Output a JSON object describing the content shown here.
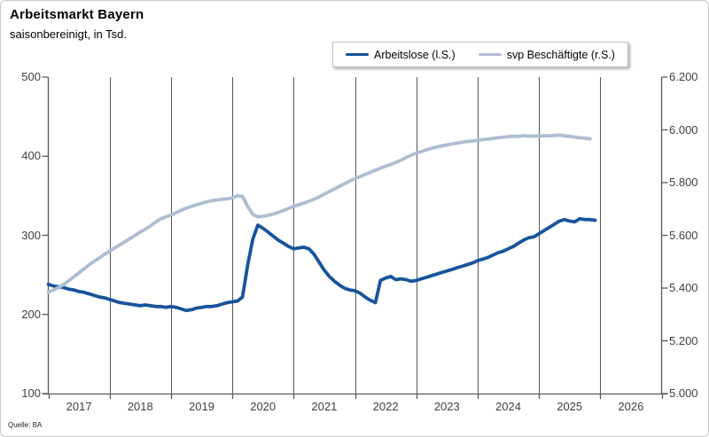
{
  "header": {
    "title": "Arbeitsmarkt Bayern",
    "subtitle": "saisonbereinigt, in Tsd."
  },
  "source_label": "Quelle: BA",
  "colors": {
    "arbeitslose_line": "#17549b",
    "beschaeftigte_line": "#aebdd2",
    "gridline": "#595959",
    "axis": "#595959",
    "tick_text": "#3f3f3f"
  },
  "legend": [
    {
      "label": "Arbeitslose (l.S.)",
      "color": "#17549b"
    },
    {
      "label": "svp Beschäftigte (r.S.)",
      "color": "#aebdd2"
    }
  ],
  "chart_data": {
    "type": "line",
    "title": "Arbeitsmarkt Bayern",
    "subtitle": "saisonbereinigt, in Tsd.",
    "grid": "vertical-year-lines",
    "legend_position": "top-right",
    "x_unit": "month",
    "x_start": "2017-01",
    "x_tick_labels": [
      "2017",
      "2018",
      "2019",
      "2020",
      "2021",
      "2022",
      "2023",
      "2024",
      "2025",
      "2026"
    ],
    "left_axis": {
      "min": 100,
      "max": 500,
      "tick_labels_top_to_bottom": [
        "500",
        "400",
        "300",
        "200",
        "100"
      ]
    },
    "right_axis": {
      "min": 5000,
      "max": 6200,
      "tick_labels_top_to_bottom": [
        "6.200",
        "6.000",
        "5.800",
        "5.600",
        "5.400",
        "5.200",
        "5.000"
      ]
    },
    "series": [
      {
        "name": "Arbeitslose (l.S.)",
        "axis": "left",
        "color": "#17549b",
        "values": [
          238,
          236,
          235,
          234,
          232,
          231,
          229,
          228,
          226,
          224,
          222,
          221,
          219,
          217,
          215,
          214,
          213,
          212,
          211,
          212,
          211,
          210,
          210,
          209,
          210,
          209,
          207,
          205,
          206,
          208,
          209,
          210,
          210,
          211,
          213,
          215,
          216,
          217,
          222,
          262,
          295,
          313,
          309,
          304,
          299,
          294,
          290,
          286,
          283,
          284,
          285,
          283,
          276,
          266,
          256,
          248,
          242,
          237,
          233,
          231,
          230,
          227,
          222,
          218,
          215,
          243,
          246,
          248,
          244,
          245,
          244,
          242,
          243,
          245,
          247,
          249,
          251,
          253,
          255,
          257,
          259,
          261,
          263,
          265,
          268,
          270,
          272,
          275,
          278,
          280,
          283,
          286,
          290,
          294,
          297,
          298,
          302,
          306,
          310,
          314,
          318,
          320,
          318,
          317,
          321,
          320,
          320,
          319
        ]
      },
      {
        "name": "svp Beschäftigte (r.S.)",
        "axis": "right",
        "color": "#aebdd2",
        "values": [
          5385,
          5393,
          5402,
          5414,
          5428,
          5443,
          5458,
          5473,
          5488,
          5502,
          5515,
          5528,
          5540,
          5552,
          5564,
          5576,
          5588,
          5600,
          5612,
          5624,
          5636,
          5650,
          5663,
          5670,
          5677,
          5686,
          5695,
          5703,
          5710,
          5716,
          5722,
          5727,
          5731,
          5734,
          5737,
          5738,
          5742,
          5750,
          5748,
          5710,
          5680,
          5670,
          5672,
          5676,
          5681,
          5687,
          5694,
          5702,
          5710,
          5716,
          5722,
          5729,
          5737,
          5746,
          5756,
          5766,
          5776,
          5786,
          5796,
          5806,
          5815,
          5823,
          5831,
          5839,
          5847,
          5855,
          5862,
          5869,
          5876,
          5885,
          5895,
          5904,
          5912,
          5918,
          5924,
          5930,
          5935,
          5939,
          5943,
          5947,
          5950,
          5953,
          5956,
          5958,
          5960,
          5963,
          5965,
          5967,
          5970,
          5972,
          5974,
          5976,
          5975,
          5978,
          5976,
          5977,
          5976,
          5978,
          5977,
          5979,
          5980,
          5977,
          5975,
          5972,
          5970,
          5968,
          5966
        ]
      }
    ]
  }
}
